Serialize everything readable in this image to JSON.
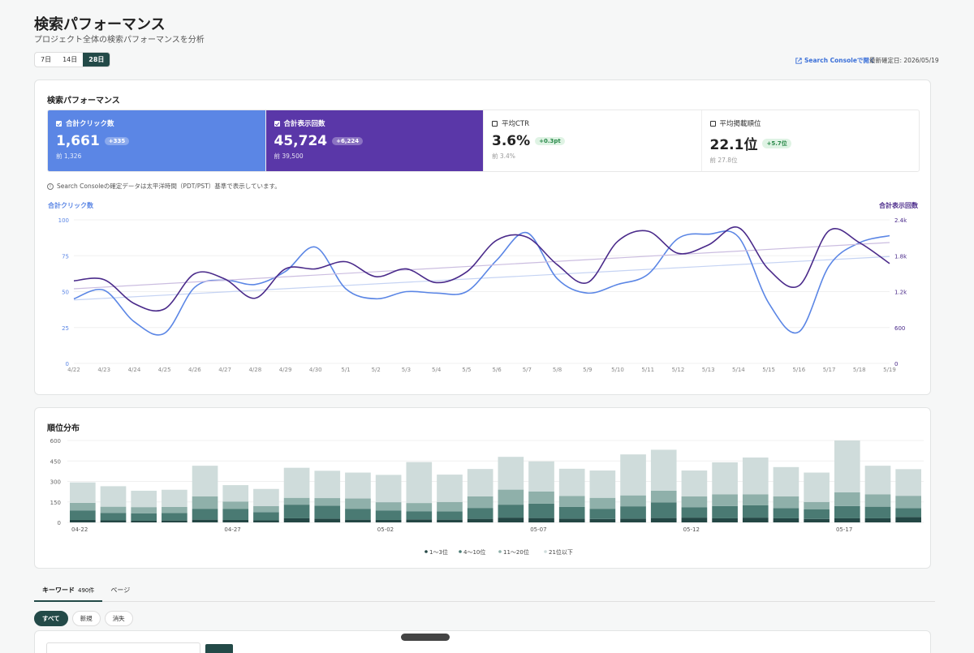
{
  "header": {
    "title": "検索パフォーマンス",
    "subtitle": "プロジェクト全体の検索パフォーマンスを分析",
    "ranges": [
      "7日",
      "14日",
      "28日"
    ],
    "active_range": "28日",
    "gsc_link": "Search Consoleで開く",
    "confirm_date": "最新確定日: 2026/05/19"
  },
  "perf": {
    "title": "検索パフォーマンス",
    "metrics": {
      "clicks": {
        "label": "合計クリック数",
        "value": "1,661",
        "delta": "+335",
        "prev": "前 1,326",
        "checked": true
      },
      "impr": {
        "label": "合計表示回数",
        "value": "45,724",
        "delta": "+6,224",
        "prev": "前 39,500",
        "checked": true
      },
      "ctr": {
        "label": "平均CTR",
        "value": "3.6%",
        "delta": "+0.3pt",
        "prev": "前 3.4%",
        "checked": false
      },
      "pos": {
        "label": "平均掲載順位",
        "value": "22.1位",
        "delta": "+5.7位",
        "prev": "前 27.8位",
        "checked": false
      }
    },
    "note": "Search Consoleの確定データは太平洋時間（PDT/PST）基準で表示しています。"
  },
  "colors": {
    "clicks": "#5b86e5",
    "impressions": "#4a2a8a",
    "rank": [
      "#244745",
      "#4a7a73",
      "#8fb0aa",
      "#cfdcdb"
    ]
  },
  "chart_data": [
    {
      "type": "line",
      "categories": [
        "4/22",
        "4/23",
        "4/24",
        "4/25",
        "4/26",
        "4/27",
        "4/28",
        "4/29",
        "4/30",
        "5/1",
        "5/2",
        "5/3",
        "5/4",
        "5/5",
        "5/6",
        "5/7",
        "5/8",
        "5/9",
        "5/10",
        "5/11",
        "5/12",
        "5/13",
        "5/14",
        "5/15",
        "5/16",
        "5/17",
        "5/18",
        "5/19"
      ],
      "yleft_label": "合計クリック数",
      "yright_label": "合計表示回数",
      "yleft_ticks": [
        "0",
        "25",
        "50",
        "75",
        "100"
      ],
      "yright_ticks": [
        "0",
        "600",
        "1.2k",
        "1.8k",
        "2.4k"
      ],
      "ylim_left": [
        0,
        100
      ],
      "ylim_right": [
        0,
        2400
      ],
      "series": [
        {
          "name": "合計クリック数",
          "axis": "left",
          "values": [
            45,
            51,
            29,
            21,
            53,
            58,
            55,
            64,
            81,
            52,
            45,
            50,
            49,
            50,
            72,
            91,
            59,
            49,
            55,
            62,
            87,
            90,
            88,
            42,
            22,
            68,
            84,
            89
          ]
        },
        {
          "name": "合計表示回数",
          "axis": "right",
          "values": [
            1380,
            1400,
            1000,
            910,
            1500,
            1410,
            1090,
            1580,
            1580,
            1700,
            1450,
            1580,
            1350,
            1530,
            2060,
            2110,
            1650,
            1350,
            2040,
            2210,
            1840,
            1980,
            2270,
            1570,
            1300,
            2220,
            2020,
            1670
          ]
        }
      ]
    },
    {
      "type": "bar",
      "stacked": true,
      "title": "順位分布",
      "categories": [
        "04-22",
        "04-23",
        "04-24",
        "04-25",
        "04-26",
        "04-27",
        "04-28",
        "04-29",
        "04-30",
        "05-01",
        "05-02",
        "05-03",
        "05-04",
        "05-05",
        "05-06",
        "05-07",
        "05-08",
        "05-09",
        "05-10",
        "05-11",
        "05-12",
        "05-13",
        "05-14",
        "05-15",
        "05-16",
        "05-17",
        "05-18",
        "05-19"
      ],
      "xtick_labels": [
        "04-22",
        "",
        "",
        "",
        "",
        "04-27",
        "",
        "",
        "",
        "",
        "05-02",
        "",
        "",
        "",
        "",
        "05-07",
        "",
        "",
        "",
        "",
        "05-12",
        "",
        "",
        "",
        "",
        "05-17",
        "",
        ""
      ],
      "yticks": [
        "0",
        "150",
        "300",
        "450",
        "600"
      ],
      "ylim": [
        0,
        600
      ],
      "legend": "bottom-center",
      "series": [
        {
          "name": "1〜3位",
          "values": [
            18,
            15,
            12,
            14,
            20,
            18,
            15,
            30,
            28,
            20,
            18,
            22,
            20,
            26,
            35,
            32,
            28,
            25,
            28,
            32,
            35,
            30,
            35,
            30,
            25,
            30,
            30,
            40
          ]
        },
        {
          "name": "4〜10位",
          "values": [
            70,
            55,
            55,
            55,
            80,
            80,
            60,
            100,
            95,
            80,
            70,
            60,
            60,
            80,
            95,
            105,
            85,
            75,
            90,
            115,
            75,
            90,
            90,
            75,
            70,
            90,
            85,
            65
          ]
        },
        {
          "name": "11〜20位",
          "values": [
            55,
            45,
            45,
            45,
            90,
            55,
            45,
            50,
            55,
            75,
            60,
            60,
            70,
            85,
            110,
            90,
            80,
            80,
            80,
            85,
            80,
            85,
            80,
            85,
            55,
            100,
            90,
            90
          ]
        },
        {
          "name": "21位以下",
          "values": [
            150,
            150,
            120,
            125,
            225,
            120,
            125,
            220,
            200,
            190,
            200,
            300,
            200,
            200,
            240,
            220,
            200,
            200,
            300,
            300,
            190,
            235,
            270,
            215,
            215,
            380,
            210,
            195
          ]
        }
      ]
    }
  ],
  "tabs": [
    {
      "label": "キーワード",
      "count": "490件"
    },
    {
      "label": "ページ",
      "count": ""
    }
  ],
  "filters": [
    "すべて",
    "新規",
    "消失"
  ]
}
